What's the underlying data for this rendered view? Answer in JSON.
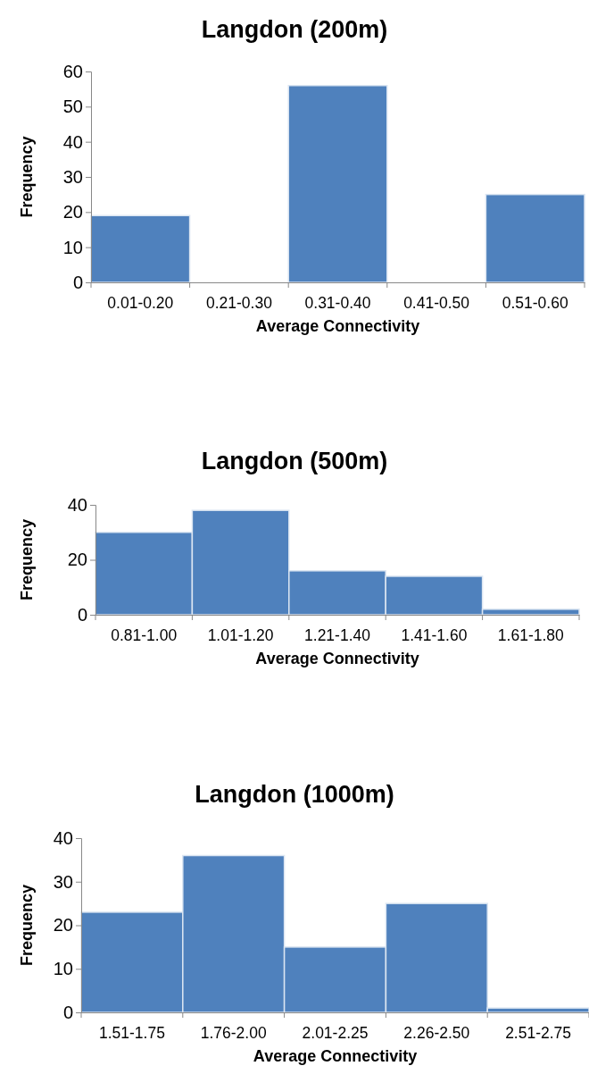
{
  "chart_data": [
    {
      "type": "bar",
      "title": "Langdon (200m)",
      "xlabel": "Average Connectivity",
      "ylabel": "Frequency",
      "categories": [
        "0.01-0.20",
        "0.21-0.30",
        "0.31-0.40",
        "0.41-0.50",
        "0.51-0.60"
      ],
      "values": [
        19,
        0,
        56,
        0,
        25
      ],
      "color": "#4f81bd",
      "ylim": [
        0,
        60
      ],
      "yticks": [
        0,
        10,
        20,
        30,
        40,
        50,
        60
      ]
    },
    {
      "type": "bar",
      "title": "Langdon (500m)",
      "xlabel": "Average Connectivity",
      "ylabel": "Frequency",
      "categories": [
        "0.81-1.00",
        "1.01-1.20",
        "1.21-1.40",
        "1.41-1.60",
        "1.61-1.80"
      ],
      "values": [
        30,
        38,
        16,
        14,
        2
      ],
      "color": "#4f81bd",
      "ylim": [
        0,
        40
      ],
      "yticks": [
        0,
        20,
        40
      ]
    },
    {
      "type": "bar",
      "title": "Langdon (1000m)",
      "xlabel": "Average Connectivity",
      "ylabel": "Frequency",
      "categories": [
        "1.51-1.75",
        "1.76-2.00",
        "2.01-2.25",
        "2.26-2.50",
        "2.51-2.75"
      ],
      "values": [
        23,
        36,
        15,
        25,
        1
      ],
      "color": "#4f81bd",
      "ylim": [
        0,
        40
      ],
      "yticks": [
        0,
        10,
        20,
        30,
        40
      ]
    }
  ]
}
